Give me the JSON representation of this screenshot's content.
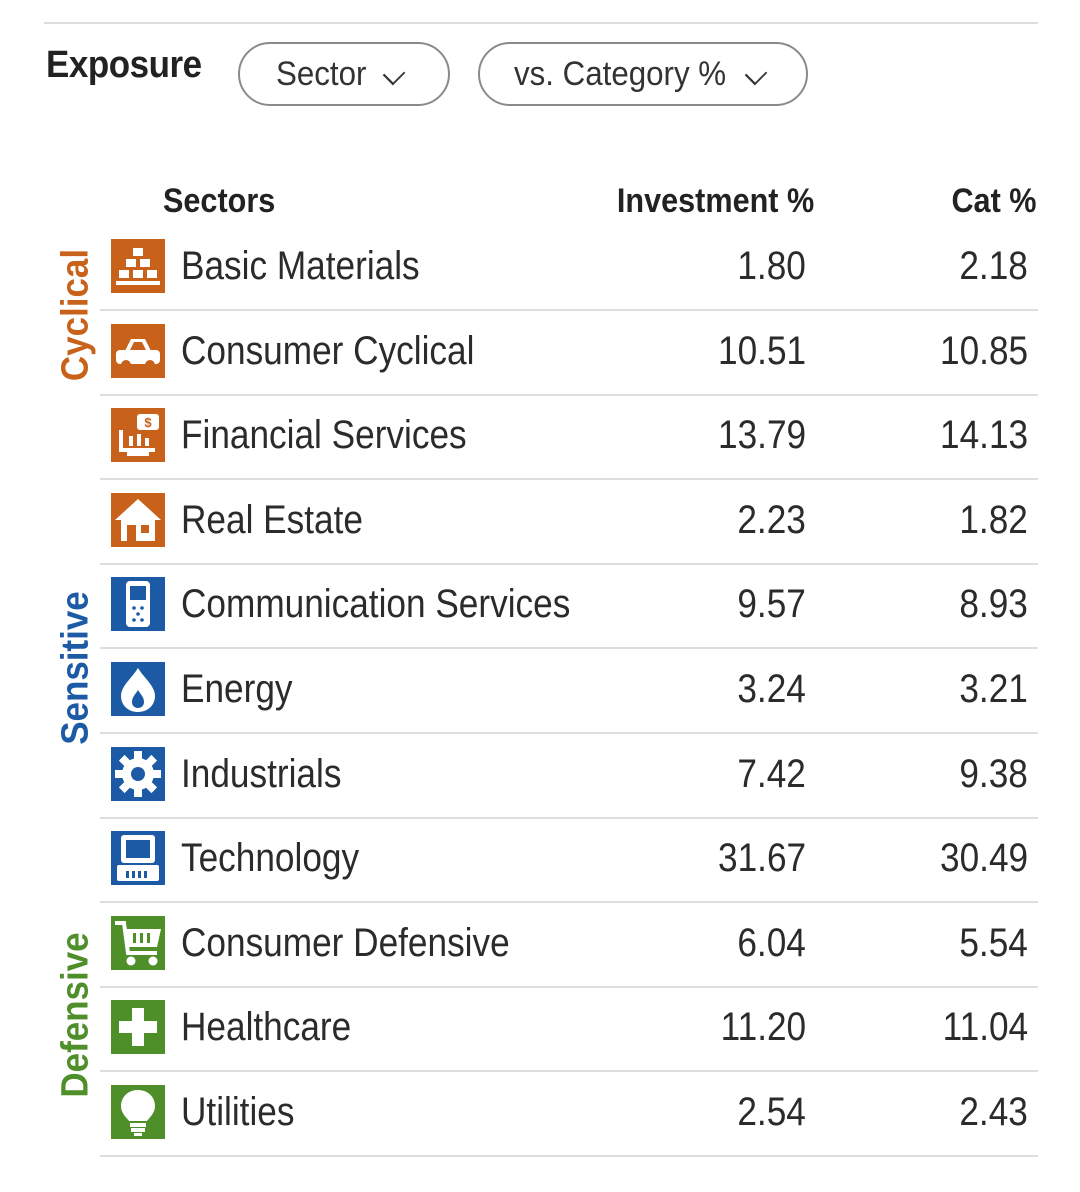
{
  "header": {
    "title": "Exposure",
    "sector_dropdown": "Sector",
    "compare_dropdown": "vs. Category %"
  },
  "table": {
    "col_sectors": "Sectors",
    "col_investment": "Investment  %",
    "col_cat": "Cat  %"
  },
  "groups": {
    "cyclical": {
      "label": "Cyclical",
      "color": "#c8621a"
    },
    "sensitive": {
      "label": "Sensitive",
      "color": "#1c5aa6"
    },
    "defensive": {
      "label": "Defensive",
      "color": "#4f8f2a"
    }
  },
  "rows": [
    {
      "sector": "Basic Materials",
      "investment": "1.80",
      "cat": "2.18",
      "icon": "gold-bars-icon"
    },
    {
      "sector": "Consumer Cyclical",
      "investment": "10.51",
      "cat": "10.85",
      "icon": "car-icon"
    },
    {
      "sector": "Financial Services",
      "investment": "13.79",
      "cat": "14.13",
      "icon": "bank-icon"
    },
    {
      "sector": "Real Estate",
      "investment": "2.23",
      "cat": "1.82",
      "icon": "house-icon"
    },
    {
      "sector": "Communication Services",
      "investment": "9.57",
      "cat": "8.93",
      "icon": "phone-icon"
    },
    {
      "sector": "Energy",
      "investment": "3.24",
      "cat": "3.21",
      "icon": "flame-icon"
    },
    {
      "sector": "Industrials",
      "investment": "7.42",
      "cat": "9.38",
      "icon": "gear-icon"
    },
    {
      "sector": "Technology",
      "investment": "31.67",
      "cat": "30.49",
      "icon": "computer-icon"
    },
    {
      "sector": "Consumer Defensive",
      "investment": "6.04",
      "cat": "5.54",
      "icon": "cart-icon"
    },
    {
      "sector": "Healthcare",
      "investment": "11.20",
      "cat": "11.04",
      "icon": "cross-icon"
    },
    {
      "sector": "Utilities",
      "investment": "2.54",
      "cat": "2.43",
      "icon": "lightbulb-icon"
    }
  ]
}
